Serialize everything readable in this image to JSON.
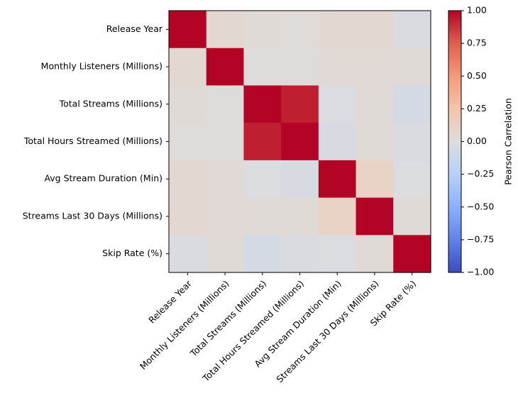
{
  "chart_data": {
    "type": "heatmap",
    "title": "",
    "labels": [
      "Release Year",
      "Monthly Listeners (Millions)",
      "Total Streams (Millions)",
      "Total Hours Streamed (Millions)",
      "Avg Stream Duration (Min)",
      "Streams Last 30 Days (Millions)",
      "Skip Rate (%)"
    ],
    "matrix": [
      [
        1.0,
        0.06,
        0.03,
        0.02,
        0.06,
        0.06,
        -0.03
      ],
      [
        0.06,
        1.0,
        0.01,
        0.01,
        0.04,
        0.04,
        0.03
      ],
      [
        0.03,
        0.01,
        1.0,
        0.93,
        -0.02,
        0.03,
        -0.06
      ],
      [
        0.02,
        0.01,
        0.93,
        1.0,
        -0.04,
        0.03,
        -0.03
      ],
      [
        0.06,
        0.04,
        -0.02,
        -0.04,
        1.0,
        0.12,
        -0.02
      ],
      [
        0.06,
        0.04,
        0.03,
        0.03,
        0.12,
        1.0,
        0.03
      ],
      [
        -0.03,
        0.03,
        -0.06,
        -0.03,
        -0.02,
        0.03,
        1.0
      ]
    ],
    "colormap": "coolwarm",
    "vmin": -1.0,
    "vmax": 1.0,
    "colorbar": {
      "label": "Pearson Carrelation",
      "ticks": [
        "1.00",
        "0.75",
        "0.50",
        "0.25",
        "0.00",
        "−0.25",
        "−0.50",
        "−0.75",
        "−1.00"
      ]
    },
    "legend": "colorbar-right",
    "grid": false
  }
}
